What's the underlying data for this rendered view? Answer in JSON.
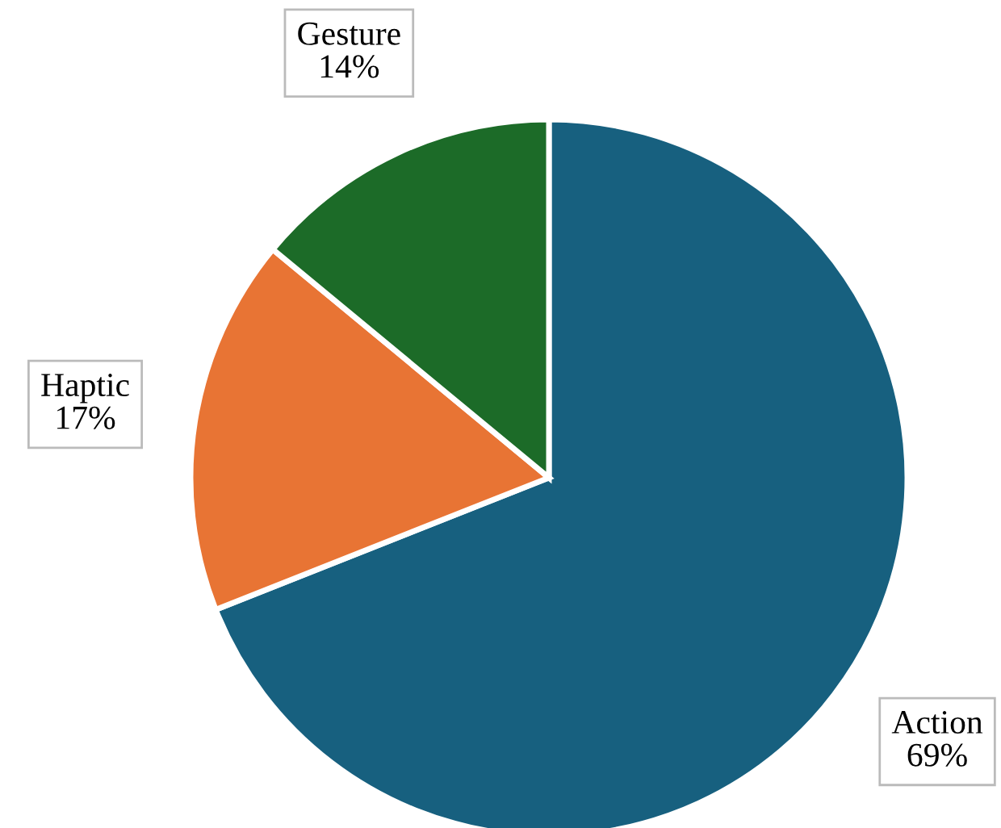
{
  "chart_data": {
    "type": "pie",
    "categories": [
      "Action",
      "Haptic",
      "Gesture"
    ],
    "values": [
      69,
      17,
      14
    ],
    "colors": [
      "#17607f",
      "#e87434",
      "#1c6b28"
    ],
    "value_labels": [
      "69%",
      "17%",
      "14%"
    ],
    "legend": false
  }
}
